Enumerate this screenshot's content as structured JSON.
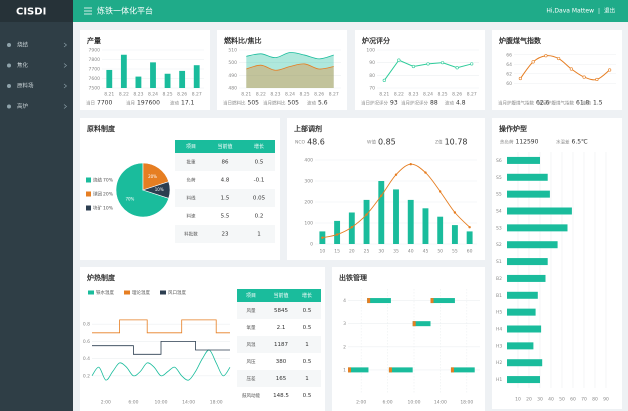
{
  "header": {
    "logo": "CISDI",
    "title": "炼铁一体化平台",
    "user": "Hi,Dava Mattew",
    "logout": "退出"
  },
  "menu": [
    "烧结",
    "焦化",
    "原料场",
    "高炉"
  ],
  "chart_data": [
    {
      "type": "bar",
      "title": "产量",
      "categories": [
        "8.21",
        "8.22",
        "8.23",
        "8.24",
        "8.25",
        "8.26",
        "8.27"
      ],
      "values": [
        7690,
        7850,
        7620,
        7770,
        7650,
        7680,
        7740
      ],
      "color": "#1abc9c",
      "ylim": [
        7500,
        7900
      ],
      "yticks": [
        7500,
        7600,
        7700,
        7800,
        7900
      ],
      "grid": true,
      "stats": [
        {
          "label": "当日",
          "value": 7700
        },
        {
          "label": "当月",
          "value": 197600
        },
        {
          "label": "波动",
          "value": 17.1
        }
      ]
    },
    {
      "type": "area",
      "title": "燃料比/焦比",
      "categories": [
        "8.21",
        "8.22",
        "8.23",
        "8.24",
        "8.25",
        "8.26",
        "8.27"
      ],
      "series": [
        {
          "color": "#1abc9c",
          "values": [
            505,
            507,
            504,
            508,
            506,
            503,
            506
          ]
        },
        {
          "color": "#e67e22",
          "values": [
            495,
            498,
            494,
            497,
            499,
            495,
            497
          ]
        }
      ],
      "ylim": [
        480,
        510
      ],
      "yticks": [
        480,
        490,
        500,
        510
      ],
      "grid": true,
      "stats": [
        {
          "label": "当日燃料比",
          "value": 505
        },
        {
          "label": "当月燃料比",
          "value": 505
        },
        {
          "label": "波动",
          "value": 5.6
        }
      ]
    },
    {
      "type": "line",
      "title": "炉况评分",
      "categories": [
        "8.21",
        "8.22",
        "8.23",
        "8.24",
        "8.25",
        "8.26",
        "8.27"
      ],
      "values": [
        76,
        92,
        87,
        89,
        90,
        86,
        89
      ],
      "color": "#2ecc9a",
      "ylim": [
        70,
        100
      ],
      "yticks": [
        70,
        80,
        90,
        100
      ],
      "grid": true,
      "stats": [
        {
          "label": "当日炉况评分",
          "value": 93
        },
        {
          "label": "当月炉况评分",
          "value": 88
        },
        {
          "label": "波动",
          "value": 4.8
        }
      ]
    },
    {
      "type": "spline",
      "title": "炉腹煤气指数",
      "values": [
        61,
        64.5,
        65.8,
        65.2,
        63,
        61.3,
        60.8,
        62.8
      ],
      "color": "#e67e22",
      "ylim": [
        59,
        67
      ],
      "yticks": [
        60,
        62,
        64,
        66
      ],
      "grid": true,
      "stats": [
        {
          "label": "当月炉腹煤气指数",
          "value": 62.6
        },
        {
          "label": "当月炉腹煤气指数",
          "value": 61.8
        },
        {
          "label": "波动",
          "value": 1.5
        }
      ]
    },
    {
      "type": "pie",
      "title": "原料制度",
      "categories": [
        "烧结",
        "球团",
        "块矿"
      ],
      "values": [
        70,
        20,
        10
      ],
      "value_labels": [
        "70%",
        "20%",
        "10%"
      ],
      "colors": [
        "#1abc9c",
        "#e67e22",
        "#2c3e50"
      ],
      "table": {
        "columns": [
          "项目",
          "当前值",
          "增长"
        ],
        "rows": [
          [
            "批重",
            86,
            0.5
          ],
          [
            "负荷",
            4.8,
            -0.1
          ],
          [
            "料线",
            1.5,
            0.05
          ],
          [
            "料速",
            5.5,
            0.2
          ],
          [
            "料批数",
            23,
            1
          ]
        ]
      }
    },
    {
      "type": "bar_line",
      "title": "上部调剂",
      "stats": [
        {
          "label": "NCO",
          "value": 48.6
        },
        {
          "label": "W值",
          "value": 0.85
        },
        {
          "label": "Z值",
          "value": 10.78
        }
      ],
      "categories": [
        "10",
        "15",
        "20",
        "25",
        "30",
        "35",
        "40",
        "45",
        "50",
        "55",
        "60"
      ],
      "series": [
        {
          "type": "bar",
          "color": "#1abc9c",
          "values": [
            60,
            110,
            150,
            210,
            300,
            260,
            210,
            170,
            130,
            90,
            60
          ]
        },
        {
          "type": "line",
          "color": "#e67e22",
          "values": [
            30,
            45,
            80,
            140,
            230,
            330,
            380,
            340,
            250,
            150,
            80
          ]
        }
      ],
      "ylim": [
        0,
        400
      ],
      "yticks": [
        0,
        100,
        200,
        300,
        400
      ],
      "grid": true
    },
    {
      "type": "hbar",
      "title": "操作炉型",
      "stats": [
        {
          "label": "热负荷",
          "value": 112590
        },
        {
          "label": "水温差",
          "value": "6.5℃"
        }
      ],
      "categories": [
        "S6",
        "S5",
        "S5",
        "S4",
        "S3",
        "S2",
        "S1",
        "B2",
        "B1",
        "H5",
        "H4",
        "H3",
        "H2",
        "H1"
      ],
      "values": [
        30,
        37,
        39,
        59,
        55,
        46,
        37,
        35,
        28,
        26,
        31,
        24,
        32,
        30
      ],
      "color": "#1abc9c",
      "xlim": [
        0,
        100
      ],
      "xticks": [
        10,
        20,
        30,
        40,
        50,
        60,
        70,
        80,
        90
      ],
      "grid": true
    },
    {
      "type": "multi_line",
      "title": "炉热制度",
      "x": [
        0,
        1,
        2,
        3,
        4,
        5,
        6,
        7,
        8,
        9,
        10,
        11,
        12,
        13,
        14,
        15,
        16,
        17,
        18,
        19,
        20
      ],
      "series": [
        {
          "name": "铁水温度",
          "color": "#1abc9c",
          "values": [
            0.2,
            0.3,
            0.15,
            0.25,
            0.35,
            0.3,
            0.2,
            0.25,
            0.35,
            0.3,
            0.2,
            0.25,
            0.3,
            0.2,
            0.15,
            0.25,
            0.4,
            0.5,
            0.35,
            0.2,
            0.3
          ]
        },
        {
          "name": "理论温度",
          "color": "#e67e22",
          "step": true,
          "values": [
            0.7,
            0.7,
            0.7,
            0.7,
            0.85,
            0.85,
            0.85,
            0.85,
            0.7,
            0.7,
            0.7,
            0.7,
            0.7,
            0.85,
            0.85,
            0.85,
            0.85,
            0.85,
            0.7,
            0.7,
            0.7
          ]
        },
        {
          "name": "风口温度",
          "color": "#2c3e50",
          "step": true,
          "values": [
            0.55,
            0.55,
            0.55,
            0.55,
            0.55,
            0.55,
            0.45,
            0.45,
            0.45,
            0.45,
            0.6,
            0.6,
            0.6,
            0.6,
            0.6,
            0.5,
            0.5,
            0.5,
            0.5,
            0.5,
            0.5
          ]
        }
      ],
      "xlim": [
        0,
        20
      ],
      "xticks": [
        {
          "value": 2,
          "label": "2:00"
        },
        {
          "value": 6,
          "label": "6:00"
        },
        {
          "value": 10,
          "label": "10:00"
        },
        {
          "value": 14,
          "label": "14:00"
        },
        {
          "value": 18,
          "label": "18:00"
        }
      ],
      "ylim": [
        0,
        1
      ],
      "yticks": [
        0.2,
        0.4,
        0.6,
        0.8
      ],
      "grid": true,
      "table": {
        "columns": [
          "项目",
          "当前值",
          "增长"
        ],
        "rows": [
          [
            "风量",
            5845,
            0.5
          ],
          [
            "氧量",
            2.1,
            0.5
          ],
          [
            "风温",
            1187,
            1
          ],
          [
            "风压",
            380,
            0.5
          ],
          [
            "压差",
            165,
            1
          ],
          [
            "鼓风动能",
            148.5,
            0.5
          ]
        ]
      }
    },
    {
      "type": "gantt",
      "title": "出铁管理",
      "tasks": [
        {
          "row": 4,
          "start": 2.9,
          "end": 6.5
        },
        {
          "row": 4,
          "start": 12.5,
          "end": 16.2
        },
        {
          "row": 3,
          "start": 9.8,
          "end": 12.5
        },
        {
          "row": 1,
          "start": 0,
          "end": 3.1
        },
        {
          "row": 1,
          "start": 6.2,
          "end": 9.8
        },
        {
          "row": 1,
          "start": 15.6,
          "end": 19.2
        }
      ],
      "color": "#1abc9c",
      "start_color": "#e67e22",
      "xlim": [
        0,
        20
      ],
      "xticks": [
        {
          "value": 2,
          "label": "2:00"
        },
        {
          "value": 6,
          "label": "6:00"
        },
        {
          "value": 10,
          "label": "10:00"
        },
        {
          "value": 14,
          "label": "14:00"
        },
        {
          "value": 18,
          "label": "18:00"
        }
      ],
      "ylim": [
        0,
        4.5
      ],
      "yticks": [
        1,
        2,
        3,
        4
      ],
      "grid": true
    }
  ]
}
